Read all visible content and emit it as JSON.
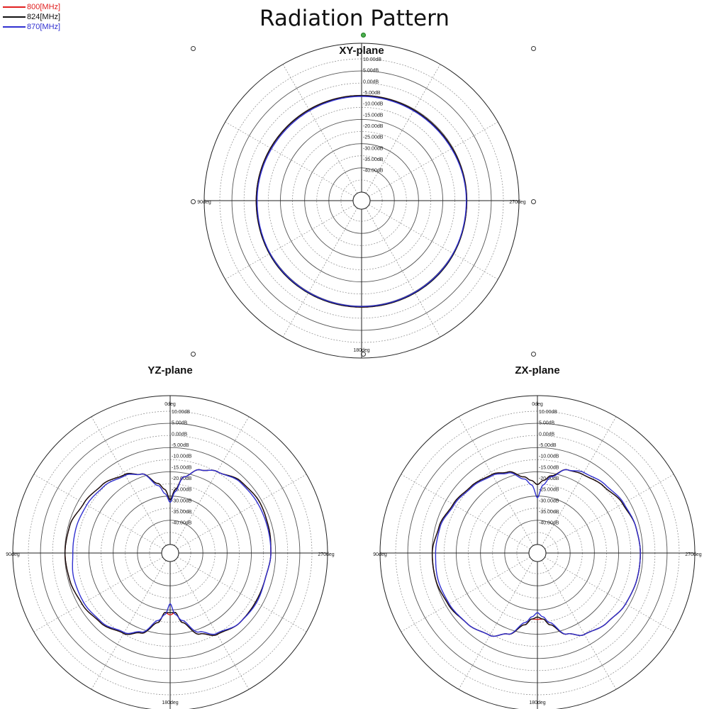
{
  "title": "Radiation Pattern",
  "legend": [
    {
      "label": "800[MHz]",
      "color": "#e02020"
    },
    {
      "label": "824[MHz]",
      "color": "#111111"
    },
    {
      "label": "870[MHz]",
      "color": "#3030d0"
    }
  ],
  "chart_data": [
    {
      "type": "polar-line",
      "title": "XY-plane",
      "angle_labels": {
        "top": "",
        "left": "90deg",
        "right": "270deg",
        "bottom": "180deg"
      },
      "radial_ticks": [
        "10.00dB",
        "5.00dB",
        "0.00dB",
        "-5.00dB",
        "-10.00dB",
        "-15.00dB",
        "-20.00dB",
        "-25.00dB",
        "-30.00dB",
        "-35.00dB",
        "-40.00dB"
      ],
      "rlim_db": [
        -45,
        15
      ],
      "angles_deg": [
        0,
        45,
        90,
        135,
        180,
        225,
        270,
        315
      ],
      "series": [
        {
          "name": "800[MHz]",
          "color": "#e02020",
          "gain_db": [
            -1.5,
            -1.8,
            -1.5,
            -0.9,
            -0.9,
            -0.9,
            -1.4,
            -1.6
          ]
        },
        {
          "name": "824[MHz]",
          "color": "#111111",
          "gain_db": [
            -1.5,
            -1.8,
            -1.5,
            -0.8,
            -0.9,
            -0.8,
            -1.4,
            -1.6
          ]
        },
        {
          "name": "870[MHz]",
          "color": "#3030d0",
          "gain_db": [
            -1.9,
            -2.2,
            -1.7,
            -1.1,
            -1.2,
            -1.1,
            -1.8,
            -2.1
          ]
        }
      ]
    },
    {
      "type": "polar-line",
      "title": "YZ-plane",
      "angle_labels": {
        "top": "0deg",
        "left": "90deg",
        "right": "270deg",
        "bottom": "180deg"
      },
      "radial_ticks": [
        "10.00dB",
        "5.00dB",
        "0.00dB",
        "-5.00dB",
        "-10.00dB",
        "-15.00dB",
        "-20.00dB",
        "-25.00dB",
        "-30.00dB",
        "-35.00dB",
        "-40.00dB"
      ],
      "rlim_db": [
        -45,
        15
      ],
      "angles_deg": [
        0,
        5,
        10,
        20,
        30,
        45,
        60,
        75,
        90,
        105,
        120,
        135,
        150,
        160,
        170,
        175,
        180,
        185,
        190,
        200,
        210,
        225,
        240,
        255,
        270,
        285,
        300,
        315,
        330,
        340,
        350,
        355
      ],
      "series": [
        {
          "name": "800[MHz]",
          "color": "#e02020",
          "gain_db": [
            -25,
            -20,
            -14,
            -9,
            -6.5,
            -3.5,
            -2.5,
            -3,
            -3.5,
            -4.5,
            -4.5,
            -4.5,
            -6.5,
            -10,
            -17,
            -22,
            -21,
            -22,
            -17,
            -10.5,
            -7,
            -4.5,
            -3,
            -2,
            -1.5,
            -2,
            -4,
            -5.5,
            -8,
            -11,
            -17,
            -20
          ]
        },
        {
          "name": "824[MHz]",
          "color": "#111111",
          "gain_db": [
            -25,
            -20,
            -14,
            -9,
            -6.5,
            -3.5,
            -2.5,
            -3,
            -3.5,
            -4.5,
            -4.5,
            -4.5,
            -6.5,
            -10,
            -17,
            -22,
            -22,
            -22,
            -17,
            -10.5,
            -7,
            -4.5,
            -3,
            -2,
            -1.5,
            -2,
            -4,
            -5.5,
            -8,
            -11,
            -17,
            -20
          ]
        },
        {
          "name": "870[MHz]",
          "color": "#3030d0",
          "gain_db": [
            -26,
            -21,
            -14,
            -9,
            -6.5,
            -4,
            -3.5,
            -3.5,
            -3.5,
            -4.5,
            -4,
            -4.5,
            -7,
            -11,
            -18,
            -21,
            -26,
            -21,
            -18,
            -11,
            -7.5,
            -5,
            -4,
            -4,
            -5,
            -5,
            -5.5,
            -6.5,
            -8.5,
            -11,
            -18,
            -22
          ]
        }
      ]
    },
    {
      "type": "polar-line",
      "title": "ZX-plane",
      "angle_labels": {
        "top": "0deg",
        "left": "90deg",
        "right": "270deg",
        "bottom": "180deg"
      },
      "radial_ticks": [
        "10.00dB",
        "5.00dB",
        "0.00dB",
        "-5.00dB",
        "-10.00dB",
        "-15.00dB",
        "-20.00dB",
        "-25.00dB",
        "-30.00dB",
        "-35.00dB",
        "-40.00dB"
      ],
      "rlim_db": [
        -45,
        15
      ],
      "angles_deg": [
        0,
        5,
        10,
        20,
        30,
        45,
        60,
        75,
        90,
        105,
        120,
        135,
        150,
        160,
        170,
        175,
        180,
        185,
        190,
        200,
        210,
        225,
        240,
        255,
        270,
        285,
        300,
        315,
        330,
        340,
        350,
        355
      ],
      "series": [
        {
          "name": "800[MHz]",
          "color": "#e02020",
          "gain_db": [
            -18,
            -16,
            -13.5,
            -9,
            -8,
            -6.5,
            -4.5,
            -3,
            -2.5,
            -2.5,
            -3,
            -4.5,
            -6.5,
            -10,
            -16,
            -19,
            -19,
            -19,
            -16,
            -10,
            -6,
            -4,
            -2.5,
            -1.5,
            -1.5,
            -3,
            -5,
            -6.5,
            -8,
            -10,
            -14,
            -16
          ]
        },
        {
          "name": "824[MHz]",
          "color": "#111111",
          "gain_db": [
            -18,
            -16,
            -13.5,
            -9,
            -8,
            -6.5,
            -4.5,
            -3,
            -2.5,
            -2.5,
            -3,
            -4.5,
            -6.5,
            -10,
            -16,
            -19,
            -20,
            -19,
            -16,
            -10,
            -6,
            -4,
            -2.5,
            -1.5,
            -1.5,
            -3,
            -5,
            -6.5,
            -8,
            -10,
            -14,
            -16
          ]
        },
        {
          "name": "870[MHz]",
          "color": "#3030d0",
          "gain_db": [
            -24,
            -18,
            -14,
            -9,
            -7,
            -5.5,
            -4,
            -3,
            -2.5,
            -2.5,
            -3,
            -4.5,
            -6.5,
            -10,
            -17,
            -20,
            -22,
            -20,
            -17,
            -10,
            -6,
            -4,
            -3,
            -2.5,
            -3,
            -3.5,
            -5.5,
            -7,
            -8.5,
            -10.5,
            -15,
            -18
          ]
        }
      ]
    }
  ]
}
